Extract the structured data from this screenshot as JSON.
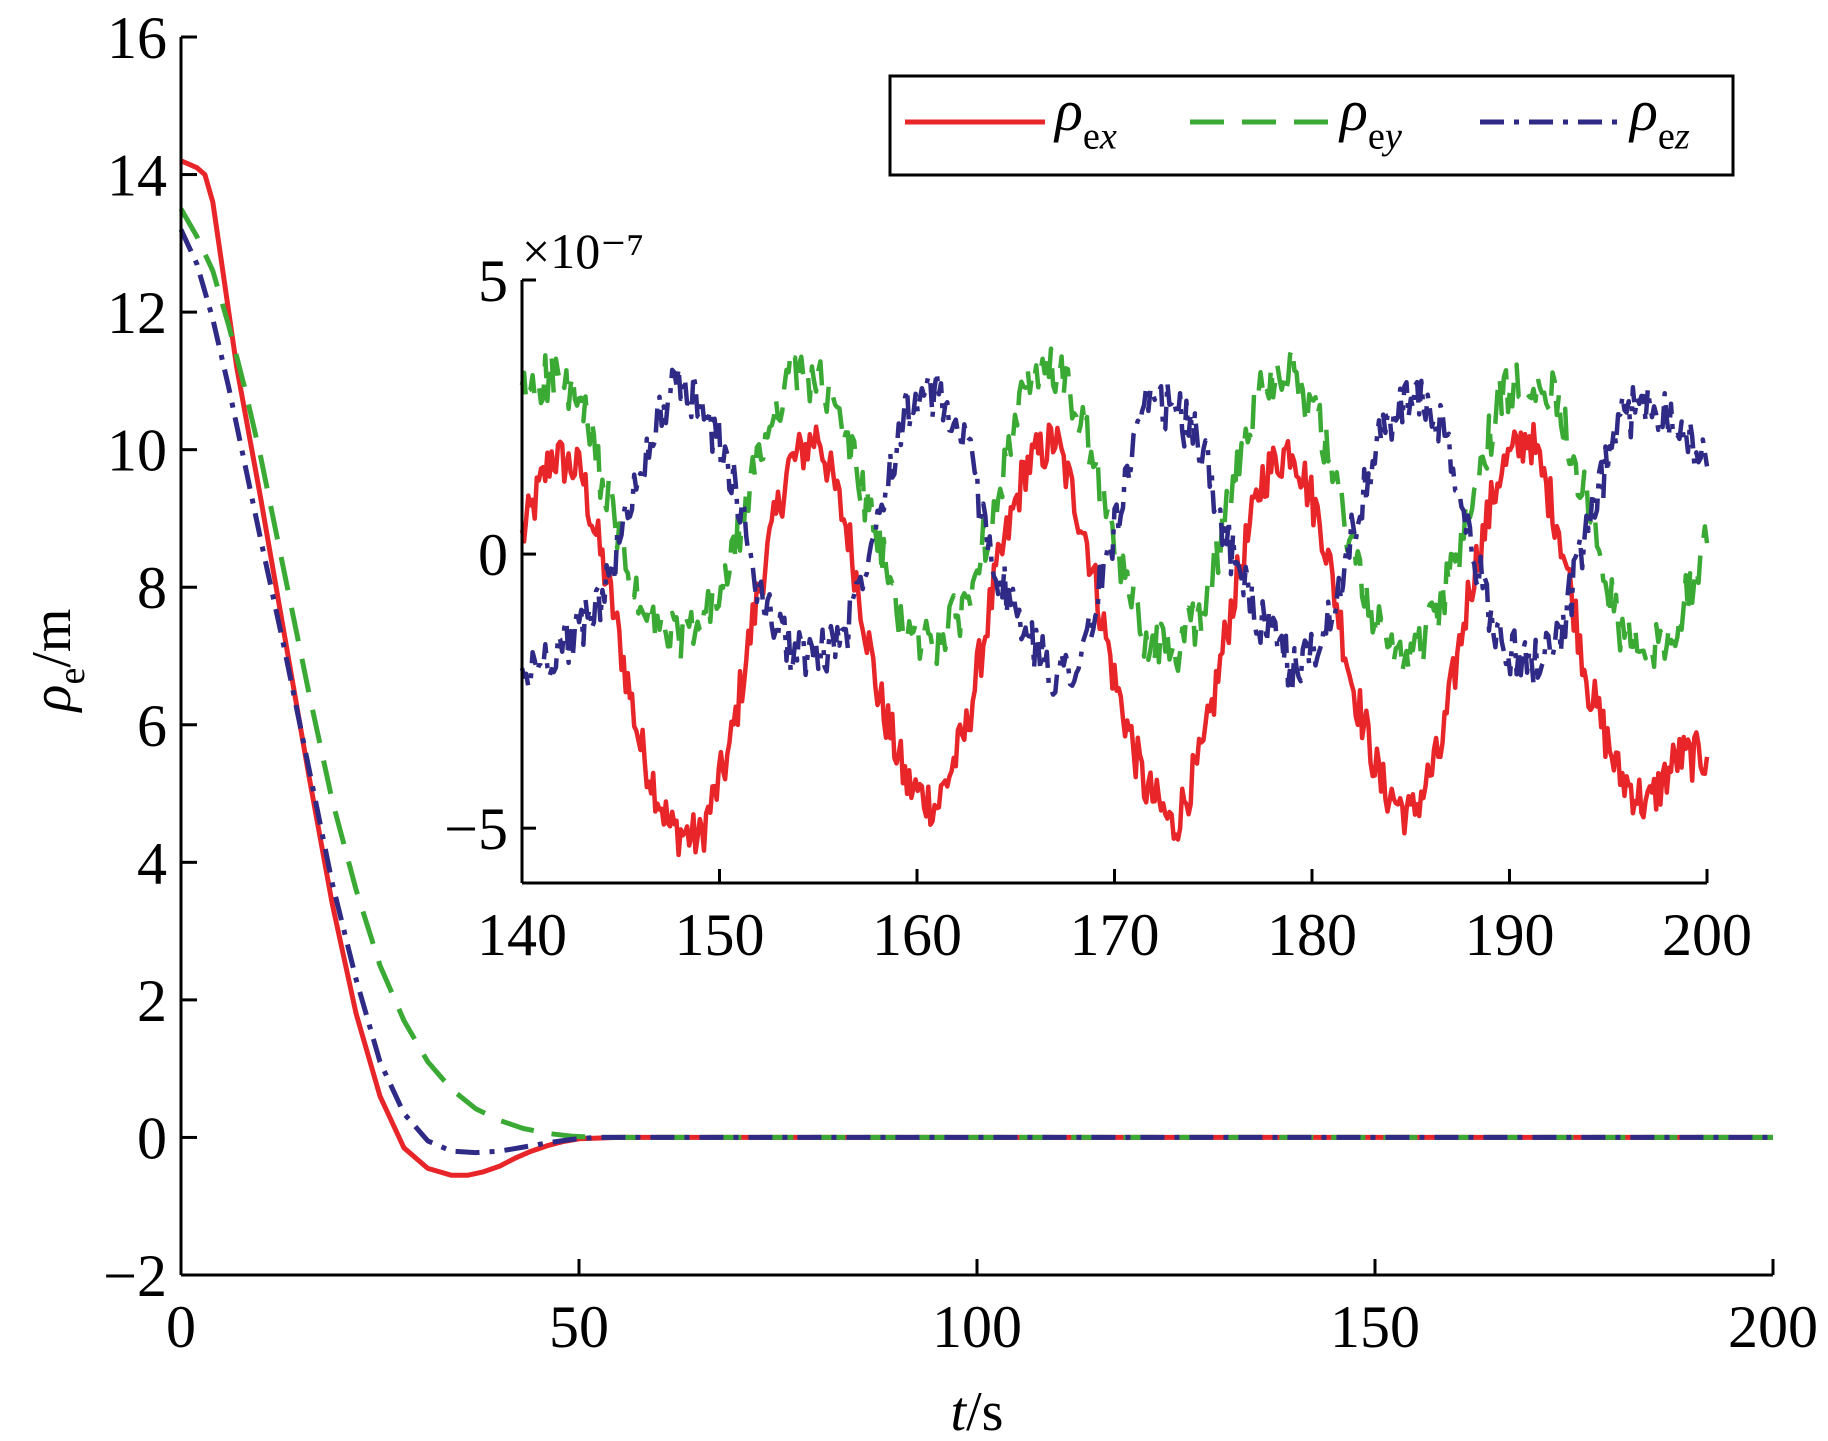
{
  "chart_data": [
    {
      "type": "line",
      "title": "",
      "xlabel": "t/s",
      "ylabel": "ρe/m",
      "xlim": [
        0,
        200
      ],
      "ylim": [
        -2,
        16
      ],
      "x_ticks": [
        "0",
        "50",
        "100",
        "150",
        "200"
      ],
      "y_ticks": [
        "−2",
        "0",
        "2",
        "4",
        "6",
        "8",
        "10",
        "12",
        "14",
        "16"
      ],
      "grid": false,
      "legend_placement": "top-right",
      "series": [
        {
          "name": "ρex",
          "color": "#e8262a",
          "style": "solid",
          "x": [
            0,
            1,
            2,
            3,
            4,
            5,
            7,
            10,
            13,
            16,
            19,
            22,
            25,
            28,
            31,
            34,
            36,
            38,
            40,
            42,
            44,
            46,
            48,
            50,
            55,
            60,
            80,
            100,
            150,
            200
          ],
          "y": [
            14.2,
            14.15,
            14.1,
            14.0,
            13.6,
            12.8,
            11.2,
            9.3,
            7.3,
            5.3,
            3.4,
            1.8,
            0.6,
            -0.15,
            -0.45,
            -0.55,
            -0.55,
            -0.5,
            -0.42,
            -0.3,
            -0.2,
            -0.12,
            -0.06,
            -0.02,
            0,
            0,
            0,
            0,
            0,
            0
          ]
        },
        {
          "name": "ρey",
          "color": "#3aaa35",
          "style": "dashed",
          "x": [
            0,
            2,
            4,
            6,
            8,
            10,
            13,
            16,
            19,
            22,
            25,
            28,
            31,
            34,
            37,
            40,
            43,
            46,
            49,
            52,
            55,
            60,
            80,
            100,
            150,
            200
          ],
          "y": [
            13.5,
            13.1,
            12.6,
            11.8,
            10.9,
            9.9,
            8.2,
            6.5,
            4.9,
            3.6,
            2.5,
            1.7,
            1.1,
            0.7,
            0.42,
            0.25,
            0.13,
            0.06,
            0.02,
            0,
            0,
            0,
            0,
            0,
            0,
            0
          ]
        },
        {
          "name": "ρez",
          "color": "#2e2a85",
          "style": "dash-dot",
          "x": [
            0,
            2,
            4,
            6,
            8,
            10,
            13,
            16,
            19,
            22,
            25,
            28,
            31,
            34,
            37,
            40,
            43,
            46,
            49,
            52,
            55,
            60,
            80,
            100,
            150,
            200
          ],
          "y": [
            13.2,
            12.7,
            11.9,
            10.9,
            9.8,
            8.7,
            7.1,
            5.4,
            3.7,
            2.3,
            1.1,
            0.35,
            -0.05,
            -0.2,
            -0.22,
            -0.2,
            -0.14,
            -0.08,
            -0.03,
            0,
            0,
            0,
            0,
            0,
            0,
            0
          ]
        }
      ]
    },
    {
      "type": "line",
      "title": "",
      "xlabel": "",
      "ylabel": "",
      "y_scale_label": "×10⁻⁷",
      "xlim": [
        140,
        200
      ],
      "ylim": [
        -6,
        5
      ],
      "x_ticks": [
        "140",
        "150",
        "160",
        "170",
        "180",
        "190",
        "200"
      ],
      "y_ticks": [
        "−5",
        "0",
        "5"
      ],
      "grid": false,
      "inset": true,
      "series": [
        {
          "name": "ρex",
          "color": "#e8262a",
          "style": "solid",
          "x": [
            140,
            141.5,
            143,
            144.5,
            146,
            147.5,
            149,
            150.5,
            152,
            153.5,
            155,
            156.5,
            158,
            159.5,
            161,
            162.5,
            164,
            165.5,
            167,
            168.5,
            170,
            171.5,
            173,
            174.5,
            176,
            177.5,
            179,
            180.5,
            182,
            183.5,
            185,
            186.5,
            188,
            189.5,
            191,
            192.5,
            194,
            195.5,
            197,
            198.5,
            200
          ],
          "y": [
            0.3,
            1.8,
            1.5,
            -0.8,
            -3.5,
            -5.0,
            -5.2,
            -3.6,
            -0.6,
            1.6,
            2.2,
            0.4,
            -2.5,
            -4.2,
            -4.6,
            -3.2,
            -0.4,
            1.6,
            2.1,
            0.4,
            -2.3,
            -4.2,
            -5.0,
            -3.6,
            -0.8,
            1.4,
            2.0,
            0.5,
            -2.3,
            -4.2,
            -4.8,
            -3.6,
            -0.6,
            1.5,
            2.2,
            0.5,
            -2.4,
            -4.0,
            -4.6,
            -3.7,
            -3.7
          ]
        },
        {
          "name": "ρey",
          "color": "#3aaa35",
          "style": "dashed",
          "x": [
            140,
            141.5,
            143,
            144.5,
            146,
            147.5,
            149,
            150.5,
            152,
            153.5,
            155,
            156.5,
            158,
            159.5,
            161,
            162.5,
            164,
            165.5,
            167,
            168.5,
            170,
            171.5,
            173,
            174.5,
            176,
            177.5,
            179,
            180.5,
            182,
            183.5,
            185,
            186.5,
            188,
            189.5,
            191,
            192.5,
            194,
            195.5,
            197,
            198.5,
            200
          ],
          "y": [
            2.9,
            3.3,
            2.7,
            0.8,
            -1.1,
            -1.5,
            -1.4,
            -0.3,
            1.8,
            3.3,
            3.2,
            2.1,
            0.2,
            -1.5,
            -1.6,
            -0.9,
            1.0,
            3.0,
            3.4,
            2.3,
            0.1,
            -1.5,
            -1.8,
            -1.0,
            1.2,
            3.2,
            3.4,
            2.2,
            0.1,
            -1.5,
            -1.9,
            -1.0,
            0.8,
            2.8,
            3.3,
            2.8,
            0.8,
            -1.3,
            -1.9,
            -1.2,
            0.2
          ]
        },
        {
          "name": "ρez",
          "color": "#2e2a85",
          "style": "dash-dot",
          "x": [
            140,
            141.5,
            143,
            144.5,
            146,
            147.5,
            149,
            150.5,
            152,
            153.5,
            155,
            156.5,
            158,
            159.5,
            161,
            162.5,
            164,
            165.5,
            167,
            168.5,
            170,
            171.5,
            173,
            174.5,
            176,
            177.5,
            179,
            180.5,
            182,
            183.5,
            185,
            186.5,
            188,
            189.5,
            191,
            192.5,
            194,
            195.5,
            197,
            198.5,
            200
          ],
          "y": [
            -2.3,
            -1.8,
            -1.4,
            -0.4,
            1.6,
            3.0,
            2.8,
            1.6,
            -0.7,
            -1.7,
            -1.9,
            -1.3,
            0.8,
            2.7,
            2.9,
            2.0,
            -0.3,
            -1.5,
            -2.2,
            -1.8,
            0.5,
            2.6,
            2.7,
            1.9,
            -0.1,
            -1.3,
            -2.1,
            -1.6,
            0.3,
            2.2,
            2.9,
            2.4,
            0.2,
            -1.6,
            -2.0,
            -1.5,
            0.4,
            2.4,
            2.8,
            2.5,
            1.6
          ]
        }
      ]
    }
  ]
}
